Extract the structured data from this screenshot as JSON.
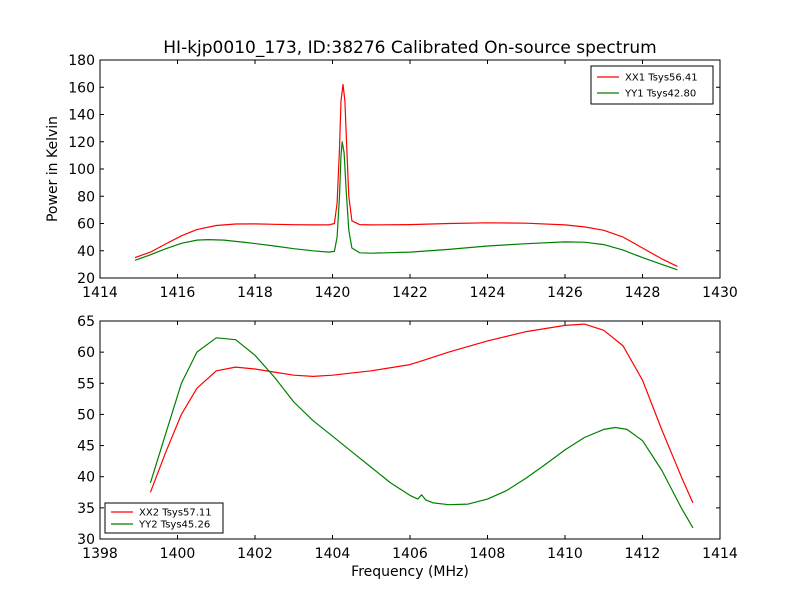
{
  "figure": {
    "title": "HI-kjp0010_173, ID:38276 Calibrated On-source spectrum",
    "xlabel": "Frequency (MHz)"
  },
  "chart_data": [
    {
      "type": "line",
      "ylabel": "Power in Kelvin",
      "xlim": [
        1414,
        1430
      ],
      "ylim": [
        20,
        180
      ],
      "xticks": [
        1414,
        1416,
        1418,
        1420,
        1422,
        1424,
        1426,
        1428,
        1430
      ],
      "yticks": [
        20,
        40,
        60,
        80,
        100,
        120,
        140,
        160,
        180
      ],
      "legend_position": "top-right",
      "series": [
        {
          "name": "XX1 Tsys56.41",
          "color": "#ff0000",
          "points": [
            [
              1414.9,
              35
            ],
            [
              1415.3,
              39
            ],
            [
              1415.7,
              45
            ],
            [
              1416.1,
              51
            ],
            [
              1416.5,
              55.5
            ],
            [
              1417.0,
              58.5
            ],
            [
              1417.5,
              59.6
            ],
            [
              1418.0,
              59.7
            ],
            [
              1418.5,
              59.4
            ],
            [
              1419.0,
              59.1
            ],
            [
              1419.5,
              59.0
            ],
            [
              1419.9,
              59.0
            ],
            [
              1420.05,
              60
            ],
            [
              1420.12,
              75
            ],
            [
              1420.18,
              115
            ],
            [
              1420.22,
              150
            ],
            [
              1420.27,
              162
            ],
            [
              1420.32,
              150
            ],
            [
              1420.37,
              115
            ],
            [
              1420.42,
              80
            ],
            [
              1420.5,
              62
            ],
            [
              1420.7,
              59.2
            ],
            [
              1421.0,
              59.0
            ],
            [
              1422.0,
              59.2
            ],
            [
              1423.0,
              60.0
            ],
            [
              1424.0,
              60.5
            ],
            [
              1425.0,
              60.2
            ],
            [
              1426.0,
              59.0
            ],
            [
              1426.5,
              57.5
            ],
            [
              1427.0,
              55.0
            ],
            [
              1427.5,
              50.0
            ],
            [
              1428.0,
              42.0
            ],
            [
              1428.5,
              34.0
            ],
            [
              1428.9,
              28.5
            ]
          ]
        },
        {
          "name": "YY1 Tsys42.80",
          "color": "#008000",
          "points": [
            [
              1414.9,
              33
            ],
            [
              1415.3,
              37
            ],
            [
              1415.7,
              41.5
            ],
            [
              1416.1,
              45.5
            ],
            [
              1416.5,
              47.8
            ],
            [
              1416.8,
              48.2
            ],
            [
              1417.2,
              47.8
            ],
            [
              1417.8,
              46.0
            ],
            [
              1418.5,
              43.5
            ],
            [
              1419.0,
              41.5
            ],
            [
              1419.5,
              40.0
            ],
            [
              1419.9,
              39.0
            ],
            [
              1420.05,
              39.5
            ],
            [
              1420.12,
              50
            ],
            [
              1420.18,
              80
            ],
            [
              1420.22,
              110
            ],
            [
              1420.25,
              120
            ],
            [
              1420.3,
              112
            ],
            [
              1420.35,
              85
            ],
            [
              1420.42,
              55
            ],
            [
              1420.5,
              42
            ],
            [
              1420.7,
              38.5
            ],
            [
              1421.0,
              38.2
            ],
            [
              1422.0,
              39.0
            ],
            [
              1423.0,
              41.0
            ],
            [
              1424.0,
              43.5
            ],
            [
              1425.0,
              45.2
            ],
            [
              1426.0,
              46.5
            ],
            [
              1426.5,
              46.3
            ],
            [
              1427.0,
              44.5
            ],
            [
              1427.5,
              40.5
            ],
            [
              1428.0,
              35.0
            ],
            [
              1428.5,
              30.0
            ],
            [
              1428.9,
              26.0
            ]
          ]
        }
      ]
    },
    {
      "type": "line",
      "ylabel": "",
      "xlim": [
        1398,
        1414
      ],
      "ylim": [
        30,
        65
      ],
      "xticks": [
        1398,
        1400,
        1402,
        1404,
        1406,
        1408,
        1410,
        1412,
        1414
      ],
      "yticks": [
        30,
        35,
        40,
        45,
        50,
        55,
        60,
        65
      ],
      "legend_position": "bottom-left",
      "series": [
        {
          "name": "XX2 Tsys57.11",
          "color": "#ff0000",
          "points": [
            [
              1399.3,
              37.5
            ],
            [
              1399.7,
              44.0
            ],
            [
              1400.1,
              50.0
            ],
            [
              1400.5,
              54.2
            ],
            [
              1401.0,
              57.0
            ],
            [
              1401.5,
              57.6
            ],
            [
              1402.0,
              57.3
            ],
            [
              1402.5,
              56.8
            ],
            [
              1403.0,
              56.3
            ],
            [
              1403.5,
              56.1
            ],
            [
              1404.0,
              56.3
            ],
            [
              1405.0,
              57.0
            ],
            [
              1406.0,
              58.0
            ],
            [
              1406.3,
              58.6
            ],
            [
              1407.0,
              60.0
            ],
            [
              1408.0,
              61.8
            ],
            [
              1409.0,
              63.3
            ],
            [
              1410.0,
              64.3
            ],
            [
              1410.5,
              64.5
            ],
            [
              1411.0,
              63.5
            ],
            [
              1411.5,
              61.0
            ],
            [
              1412.0,
              55.5
            ],
            [
              1412.5,
              47.5
            ],
            [
              1413.0,
              40.0
            ],
            [
              1413.3,
              35.8
            ]
          ]
        },
        {
          "name": "YY2 Tsys45.26",
          "color": "#008000",
          "points": [
            [
              1399.3,
              39.0
            ],
            [
              1399.7,
              47.0
            ],
            [
              1400.1,
              55.0
            ],
            [
              1400.5,
              60.0
            ],
            [
              1401.0,
              62.3
            ],
            [
              1401.5,
              62.0
            ],
            [
              1402.0,
              59.5
            ],
            [
              1402.5,
              56.0
            ],
            [
              1403.0,
              52.0
            ],
            [
              1403.5,
              49.0
            ],
            [
              1404.0,
              46.5
            ],
            [
              1404.5,
              44.0
            ],
            [
              1405.0,
              41.5
            ],
            [
              1405.5,
              39.0
            ],
            [
              1406.0,
              37.0
            ],
            [
              1406.2,
              36.4
            ],
            [
              1406.3,
              37.1
            ],
            [
              1406.4,
              36.3
            ],
            [
              1406.6,
              35.8
            ],
            [
              1407.0,
              35.5
            ],
            [
              1407.5,
              35.6
            ],
            [
              1408.0,
              36.4
            ],
            [
              1408.5,
              37.8
            ],
            [
              1409.0,
              39.8
            ],
            [
              1409.5,
              42.0
            ],
            [
              1410.0,
              44.3
            ],
            [
              1410.5,
              46.3
            ],
            [
              1411.0,
              47.6
            ],
            [
              1411.3,
              47.9
            ],
            [
              1411.6,
              47.6
            ],
            [
              1412.0,
              45.8
            ],
            [
              1412.5,
              41.0
            ],
            [
              1413.0,
              35.0
            ],
            [
              1413.3,
              31.8
            ]
          ]
        }
      ]
    }
  ]
}
